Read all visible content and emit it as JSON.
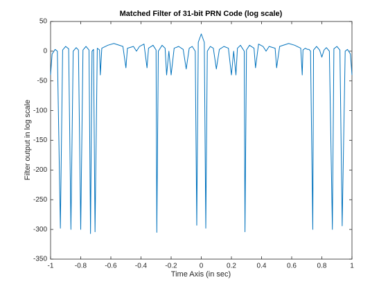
{
  "chart_data": {
    "type": "line",
    "title": "Matched Filter of 31-bit PRN Code (log scale)",
    "x_label": "Time Axis (in sec)",
    "y_label": "Filter output in log scale",
    "color": "#0072bd",
    "x": [
      -1,
      -0.99,
      -0.97,
      -0.955,
      -0.935,
      -0.92,
      -0.9,
      -0.88,
      -0.865,
      -0.85,
      -0.83,
      -0.815,
      -0.8,
      -0.785,
      -0.765,
      -0.745,
      -0.735,
      -0.725,
      -0.715,
      -0.705,
      -0.69,
      -0.675,
      -0.67,
      -0.66,
      -0.62,
      -0.58,
      -0.52,
      -0.5,
      -0.49,
      -0.45,
      -0.43,
      -0.41,
      -0.38,
      -0.36,
      -0.35,
      -0.32,
      -0.3,
      -0.295,
      -0.285,
      -0.26,
      -0.24,
      -0.23,
      -0.215,
      -0.2,
      -0.18,
      -0.15,
      -0.12,
      -0.1,
      -0.08,
      -0.06,
      -0.04,
      -0.03,
      -0.02,
      0,
      0.02,
      0.03,
      0.04,
      0.06,
      0.08,
      0.1,
      0.12,
      0.15,
      0.18,
      0.2,
      0.215,
      0.23,
      0.24,
      0.26,
      0.285,
      0.29,
      0.3,
      0.32,
      0.35,
      0.36,
      0.38,
      0.41,
      0.43,
      0.45,
      0.49,
      0.5,
      0.52,
      0.58,
      0.62,
      0.66,
      0.67,
      0.675,
      0.69,
      0.705,
      0.715,
      0.725,
      0.74,
      0.745,
      0.765,
      0.785,
      0.8,
      0.815,
      0.83,
      0.85,
      0.87,
      0.88,
      0.9,
      0.92,
      0.935,
      0.955,
      0.97,
      0.99,
      1
    ],
    "values": [
      -40,
      -5,
      3,
      0,
      -298,
      2,
      8,
      4,
      -300,
      0,
      6,
      2,
      -300,
      2,
      8,
      2,
      -307,
      0,
      3,
      -304,
      5,
      2,
      -40,
      5,
      10,
      13,
      8,
      -28,
      5,
      8,
      0,
      8,
      12,
      -28,
      5,
      10,
      2,
      -305,
      0,
      10,
      5,
      -40,
      0,
      -40,
      5,
      8,
      3,
      -30,
      5,
      8,
      0,
      -293,
      15,
      29,
      15,
      -298,
      0,
      8,
      5,
      -30,
      3,
      8,
      5,
      -40,
      0,
      -40,
      5,
      10,
      0,
      -304,
      2,
      10,
      5,
      -28,
      12,
      8,
      0,
      8,
      5,
      -28,
      8,
      13,
      10,
      5,
      -40,
      2,
      5,
      3,
      3,
      0,
      -300,
      2,
      8,
      2,
      -10,
      2,
      6,
      0,
      -300,
      4,
      8,
      2,
      -294,
      0,
      3,
      -5,
      -40
    ],
    "xlim": [
      -1,
      1
    ],
    "ylim": [
      -350,
      50
    ],
    "xticks": [
      -1,
      -0.8,
      -0.6,
      -0.4,
      -0.2,
      0,
      0.2,
      0.4,
      0.6,
      0.8,
      1
    ],
    "yticks": [
      -350,
      -300,
      -250,
      -200,
      -150,
      -100,
      -50,
      0,
      50
    ]
  }
}
